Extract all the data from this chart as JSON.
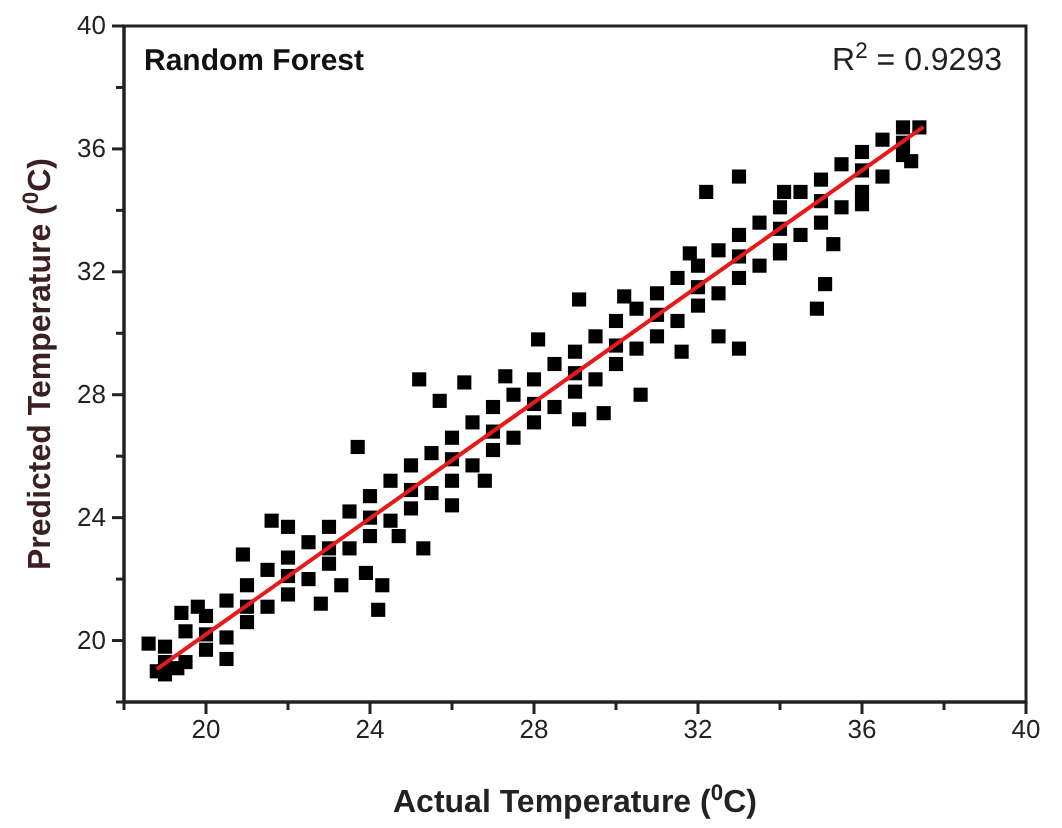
{
  "chart_data": {
    "type": "scatter",
    "xlabel": "Actual Temperature ($^{0}$C)",
    "ylabel": "Predicted Temperature ($^{0}$C)",
    "annotations": [
      "Random Forest",
      "R$^{2}$ = 0.9293"
    ],
    "marker": "square",
    "grid": false,
    "xlim": [
      18,
      40
    ],
    "ylim": [
      18,
      40
    ],
    "xticks": [
      {
        "value": 18,
        "label": null
      },
      20,
      {
        "value": 22,
        "label": null
      },
      24,
      {
        "value": 26,
        "label": null
      },
      28,
      {
        "value": 30,
        "label": null
      },
      32,
      {
        "value": 34,
        "label": null
      },
      36,
      {
        "value": 38,
        "label": null
      },
      40
    ],
    "yticks": [
      {
        "value": 18,
        "label": null
      },
      20,
      {
        "value": 22,
        "label": null
      },
      24,
      {
        "value": 26,
        "label": null
      },
      28,
      {
        "value": 30,
        "label": null
      },
      32,
      {
        "value": 34,
        "label": null
      },
      36,
      {
        "value": 38,
        "label": null
      },
      40
    ],
    "series": [
      {
        "color": "#000000",
        "x": [
          19,
          19,
          19.5,
          19.5,
          20,
          20,
          20.5,
          20.5,
          21,
          21,
          21.5,
          21.5,
          22,
          22,
          22.5,
          22.5,
          23,
          23,
          23.5,
          23.5,
          24,
          24,
          24.5,
          24.5,
          25,
          25,
          25.5,
          25.5,
          26,
          26,
          26.5,
          26.5,
          27,
          27,
          27.5,
          27.5,
          28,
          28,
          28.5,
          28.5,
          29,
          29,
          29.5,
          29.5,
          30,
          30,
          30.5,
          30.5,
          31,
          31,
          31.5,
          31.5,
          32,
          32,
          32.5,
          32.5,
          33,
          33,
          33.5,
          33.5,
          34,
          34,
          34.5,
          34.5,
          35,
          35,
          35.5,
          35.5,
          36,
          36,
          36.5,
          36.5,
          37,
          37,
          19,
          20,
          21,
          22,
          23,
          24,
          25,
          26,
          27,
          28,
          29,
          30,
          31,
          32,
          33,
          34,
          35,
          36,
          37
        ],
        "values": [
          19.8,
          18.9,
          20.3,
          19.3,
          20.8,
          19.7,
          21.3,
          20.1,
          21.8,
          20.6,
          22.3,
          21.1,
          22.7,
          21.5,
          23.2,
          22.0,
          23.7,
          22.5,
          24.2,
          23.0,
          24.7,
          23.4,
          25.2,
          23.9,
          25.7,
          24.3,
          26.1,
          24.8,
          26.6,
          25.2,
          27.1,
          25.7,
          27.6,
          26.2,
          28.0,
          26.6,
          28.5,
          27.1,
          29.0,
          27.6,
          29.4,
          28.1,
          29.9,
          28.5,
          30.4,
          29.0,
          30.8,
          29.5,
          31.3,
          29.9,
          31.8,
          30.4,
          32.2,
          30.9,
          32.7,
          31.3,
          33.2,
          31.8,
          33.6,
          32.2,
          34.1,
          32.7,
          34.6,
          33.2,
          35.0,
          33.6,
          35.5,
          34.1,
          35.9,
          34.6,
          36.3,
          35.1,
          36.7,
          35.8,
          19.3,
          20.2,
          21.1,
          22.1,
          23.0,
          24.0,
          24.9,
          25.9,
          26.8,
          27.7,
          28.7,
          29.6,
          30.6,
          31.5,
          32.5,
          33.4,
          34.3,
          35.3,
          36.2
        ]
      },
      {
        "color": "#000000",
        "x": [
          33.0,
          32.2,
          36.0,
          35.1,
          34.9,
          33.0,
          32.5,
          31.6,
          30.6,
          29.7,
          29.1,
          25.2,
          25.7,
          23.7,
          21.6,
          22.0,
          20.9,
          19.8,
          19.4,
          20.5,
          24.2,
          24.3,
          23.3,
          23.9,
          22.8,
          25.3,
          24.7,
          26.0,
          26.8,
          18.8,
          18.6,
          19.3,
          37.4,
          37.2,
          35.3,
          34.0,
          34.1,
          29.1,
          30.2,
          31.8,
          26.3,
          27.3,
          28.1
        ],
        "values": [
          35.1,
          34.6,
          34.2,
          31.6,
          30.8,
          29.5,
          29.9,
          29.4,
          28.0,
          27.4,
          27.2,
          28.5,
          27.8,
          26.3,
          23.9,
          23.7,
          22.8,
          21.1,
          20.9,
          19.4,
          21.0,
          21.8,
          21.8,
          22.2,
          21.2,
          23.0,
          23.4,
          24.4,
          25.2,
          19.0,
          19.9,
          19.1,
          36.7,
          35.6,
          32.9,
          32.6,
          34.6,
          31.1,
          31.2,
          32.6,
          28.4,
          28.6,
          29.8
        ]
      },
      {
        "type": "line",
        "marker": "none",
        "color": "#e8191a",
        "x": [
          18.8,
          37.5
        ],
        "values": [
          19.07,
          36.72
        ]
      }
    ]
  }
}
